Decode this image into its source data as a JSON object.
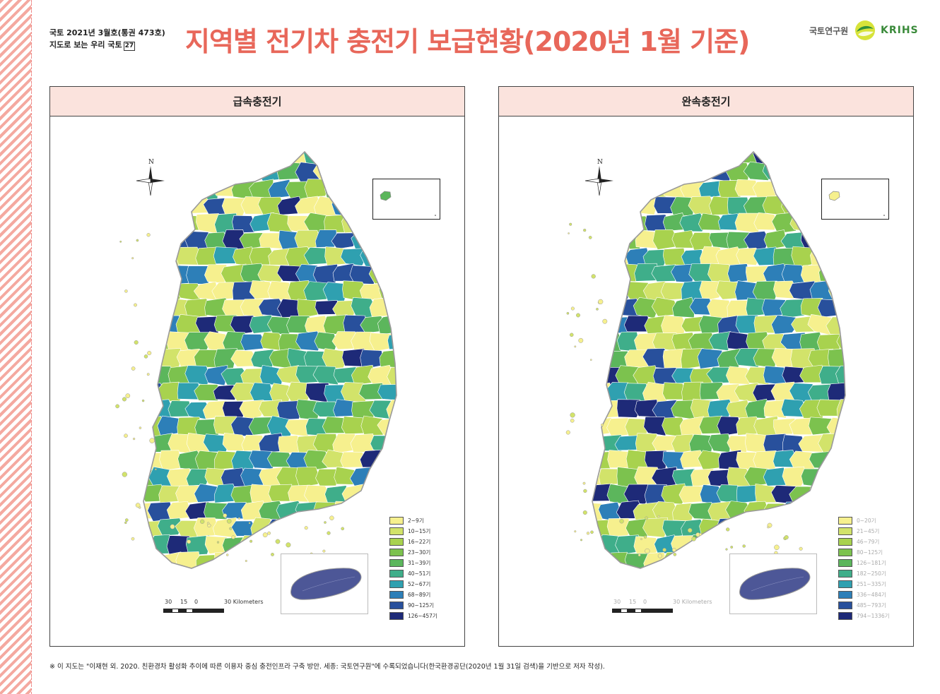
{
  "header": {
    "issue_line1": "국토 2021년 3월호(통권 473호)",
    "issue_line2": "지도로 보는 우리 국토",
    "issue_box": "27",
    "title": "지역별 전기차 충전기 보급현황(2020년 1월 기준)",
    "org_name": "국토연구원",
    "org_abbr": "KRIHS"
  },
  "maps": [
    {
      "title": "급속충전기",
      "compass_label": "N",
      "legend": [
        {
          "label": "2~9기",
          "color": "#f6f08e"
        },
        {
          "label": "10~15기",
          "color": "#d2e36a"
        },
        {
          "label": "16~22기",
          "color": "#a8d24e"
        },
        {
          "label": "23~30기",
          "color": "#7cc24e"
        },
        {
          "label": "31~39기",
          "color": "#5cb65c"
        },
        {
          "label": "40~51기",
          "color": "#3fae8a"
        },
        {
          "label": "52~67기",
          "color": "#2fa0b0"
        },
        {
          "label": "68~89기",
          "color": "#2d7fb8"
        },
        {
          "label": "90~125기",
          "color": "#28509c"
        },
        {
          "label": "126~457기",
          "color": "#1e2a78"
        }
      ],
      "scale": {
        "n1": "30",
        "n2": "15",
        "n3": "0",
        "n4": "30 Kilometers"
      }
    },
    {
      "title": "완속충전기",
      "compass_label": "N",
      "legend": [
        {
          "label": "0~20기",
          "color": "#f6f08e"
        },
        {
          "label": "21~45기",
          "color": "#d2e36a"
        },
        {
          "label": "46~79기",
          "color": "#a8d24e"
        },
        {
          "label": "80~125기",
          "color": "#7cc24e"
        },
        {
          "label": "126~181기",
          "color": "#5cb65c"
        },
        {
          "label": "182~250기",
          "color": "#3fae8a"
        },
        {
          "label": "251~335기",
          "color": "#2fa0b0"
        },
        {
          "label": "336~484기",
          "color": "#2d7fb8"
        },
        {
          "label": "485~793기",
          "color": "#28509c"
        },
        {
          "label": "794~1336기",
          "color": "#1e2a78"
        }
      ],
      "scale": {
        "n1": "30",
        "n2": "15",
        "n3": "0",
        "n4": "30 Kilometers"
      }
    }
  ],
  "footnote": "※ 이 지도는 \"이재현 외. 2020. 친환경차 활성화 추이에 따른 이용자 중심 충전인프라 구축 방안. 세종: 국토연구원\"에 수록되었습니다(한국환경공단(2020년 1월 31일 검색)을 기반으로 저자 작성)."
}
